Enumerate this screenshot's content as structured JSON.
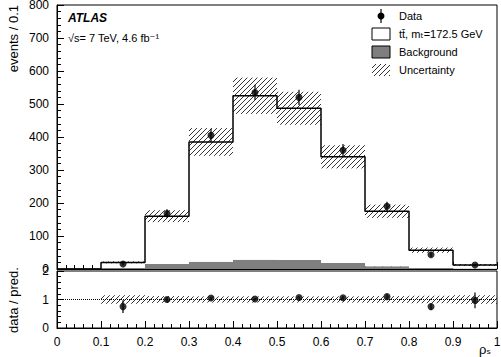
{
  "chart_data": [
    {
      "type": "histogram",
      "stacked": true,
      "tick_labels": "y",
      "legend": "upper right",
      "y_label": "events / 0.1",
      "annotations": [
        "ATLAS",
        "√s= 7 TeV, 4.6 fb⁻¹"
      ],
      "bins": [
        0,
        0.1,
        0.2,
        0.3,
        0.4,
        0.5,
        0.6,
        0.7,
        0.8,
        0.9,
        1
      ],
      "xlim": [
        0,
        1
      ],
      "xticks": [
        0,
        0.1,
        0.2,
        0.3,
        0.4,
        0.5,
        0.6,
        0.7,
        0.8,
        0.9,
        1
      ],
      "ylim": [
        0,
        800
      ],
      "yticks": [
        0,
        100,
        200,
        300,
        400,
        500,
        600,
        700,
        800
      ],
      "series": [
        {
          "name": "Background",
          "type": "bar",
          "color": "#7f7f7f",
          "values": [
            0,
            3,
            15,
            22,
            28,
            27,
            18,
            8,
            3,
            1
          ]
        },
        {
          "name": "tt̄, mₜ=172.5 GeV",
          "type": "bar",
          "color": "#ffffff",
          "values": [
            0,
            17,
            145,
            363,
            497,
            460,
            322,
            167,
            54,
            11
          ]
        },
        {
          "name": "Uncertainty",
          "type": "band",
          "color": "#000000",
          "line_style": "hatched",
          "values": [
            0,
            3,
            18,
            42,
            55,
            50,
            35,
            20,
            8,
            3
          ]
        },
        {
          "name": "Data",
          "type": "scatter",
          "color": "#000000",
          "marker": "circle",
          "x": [
            0.15,
            0.25,
            0.35,
            0.45,
            0.55,
            0.65,
            0.75,
            0.85,
            0.95
          ],
          "values": [
            15,
            168,
            405,
            535,
            520,
            360,
            190,
            43,
            12
          ],
          "errors": [
            4,
            13,
            20,
            23,
            23,
            19,
            14,
            7,
            3.5
          ]
        }
      ]
    },
    {
      "type": "scatter",
      "tick_labels": true,
      "x_label": "ρₛ",
      "y_label": "data / pred.",
      "bins": [
        0,
        0.1,
        0.2,
        0.3,
        0.4,
        0.5,
        0.6,
        0.7,
        0.8,
        0.9,
        1
      ],
      "xlim": [
        0,
        1
      ],
      "xticks": [
        0,
        0.1,
        0.2,
        0.3,
        0.4,
        0.5,
        0.6,
        0.7,
        0.8,
        0.9,
        1
      ],
      "ylim": [
        0,
        2
      ],
      "yticks": [
        0,
        1,
        2
      ],
      "reference_line": 1,
      "series": [
        {
          "type": "band",
          "color": "#000000",
          "line_style": "hatched",
          "values": [
            null,
            0.15,
            0.12,
            0.11,
            0.11,
            0.11,
            0.11,
            0.12,
            0.13,
            0.15
          ]
        },
        {
          "type": "scatter",
          "color": "#000000",
          "marker": "circle",
          "x": [
            0.15,
            0.25,
            0.35,
            0.45,
            0.55,
            0.65,
            0.75,
            0.85,
            0.95
          ],
          "values": [
            0.75,
            1.0,
            1.05,
            1.02,
            1.07,
            1.06,
            1.1,
            0.75,
            0.97
          ],
          "errors": [
            0.22,
            0.08,
            0.05,
            0.045,
            0.045,
            0.055,
            0.08,
            0.12,
            0.28
          ]
        }
      ]
    }
  ]
}
